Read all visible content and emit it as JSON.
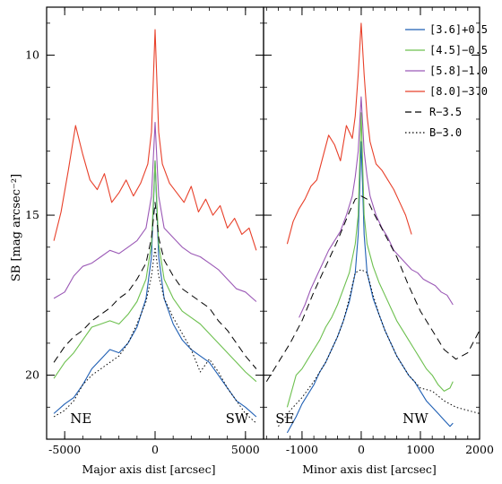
{
  "chart_data": [
    {
      "type": "line",
      "id": "major",
      "xlabel": "Major axis dist [arcsec]",
      "ylabel": "SB [mag arcsec⁻²]",
      "xlim": [
        -6000,
        6000
      ],
      "ylim": [
        22,
        8.5
      ],
      "y_inverted": true,
      "xticks": [
        -5000,
        0,
        5000
      ],
      "yticks": [
        10,
        15,
        20
      ],
      "annotations": [
        {
          "text": "NE",
          "x": -4700,
          "y": 21.5
        },
        {
          "text": "SW",
          "x": 3900,
          "y": 21.5
        }
      ],
      "series": [
        {
          "name": "[3.6]+0.5",
          "color": "#1f5fb4",
          "style": "solid",
          "x": [
            -5600,
            -5000,
            -4500,
            -4000,
            -3500,
            -3000,
            -2500,
            -2000,
            -1500,
            -1000,
            -500,
            -200,
            0,
            200,
            500,
            1000,
            1500,
            2000,
            2500,
            3000,
            3500,
            4000,
            4500,
            5000,
            5600
          ],
          "y": [
            21.2,
            20.9,
            20.7,
            20.3,
            19.8,
            19.5,
            19.2,
            19.3,
            19.0,
            18.5,
            17.6,
            16.3,
            13.3,
            16.3,
            17.6,
            18.4,
            18.9,
            19.2,
            19.4,
            19.6,
            20.0,
            20.4,
            20.8,
            21.0,
            21.3
          ]
        },
        {
          "name": "[4.5]−0.5",
          "color": "#6dc04f",
          "style": "solid",
          "x": [
            -5600,
            -5000,
            -4500,
            -4000,
            -3500,
            -3000,
            -2500,
            -2000,
            -1500,
            -1000,
            -500,
            -200,
            0,
            200,
            500,
            1000,
            1500,
            2000,
            2500,
            3000,
            3500,
            4000,
            4500,
            5000,
            5600
          ],
          "y": [
            20.1,
            19.6,
            19.3,
            18.9,
            18.5,
            18.4,
            18.3,
            18.4,
            18.1,
            17.7,
            17.0,
            15.9,
            13.3,
            15.9,
            17.0,
            17.6,
            18.0,
            18.2,
            18.4,
            18.7,
            19.0,
            19.3,
            19.6,
            19.9,
            20.2
          ]
        },
        {
          "name": "[5.8]−1.0",
          "color": "#9b59b6",
          "style": "solid",
          "x": [
            -5600,
            -5000,
            -4500,
            -4000,
            -3500,
            -3000,
            -2500,
            -2000,
            -1500,
            -1000,
            -500,
            -200,
            0,
            200,
            500,
            1000,
            1500,
            2000,
            2500,
            3000,
            3500,
            4000,
            4500,
            5000,
            5600
          ],
          "y": [
            17.6,
            17.4,
            16.9,
            16.6,
            16.5,
            16.3,
            16.1,
            16.2,
            16.0,
            15.8,
            15.4,
            14.4,
            12.1,
            14.4,
            15.4,
            15.7,
            16.0,
            16.2,
            16.3,
            16.5,
            16.7,
            17.0,
            17.3,
            17.4,
            17.7
          ]
        },
        {
          "name": "[8.0]−3.0",
          "color": "#e8402a",
          "style": "solid",
          "x": [
            -5600,
            -5200,
            -4800,
            -4400,
            -4000,
            -3600,
            -3200,
            -2800,
            -2400,
            -2000,
            -1600,
            -1200,
            -800,
            -400,
            -200,
            0,
            200,
            400,
            800,
            1200,
            1600,
            2000,
            2400,
            2800,
            3200,
            3600,
            4000,
            4400,
            4800,
            5200,
            5600
          ],
          "y": [
            15.8,
            14.9,
            13.6,
            12.2,
            13.1,
            13.9,
            14.2,
            13.7,
            14.6,
            14.3,
            13.9,
            14.4,
            14.0,
            13.4,
            12.4,
            9.2,
            12.4,
            13.4,
            14.0,
            14.3,
            14.6,
            14.1,
            14.9,
            14.5,
            15.0,
            14.7,
            15.4,
            15.1,
            15.6,
            15.4,
            16.1
          ]
        },
        {
          "name": "R−3.5",
          "color": "#000000",
          "style": "dashed",
          "x": [
            -5600,
            -5000,
            -4500,
            -4000,
            -3500,
            -3000,
            -2500,
            -2000,
            -1500,
            -1000,
            -500,
            -200,
            0,
            200,
            500,
            1000,
            1500,
            2000,
            2500,
            3000,
            3500,
            4000,
            4500,
            5000,
            5600
          ],
          "y": [
            19.6,
            19.1,
            18.8,
            18.6,
            18.3,
            18.1,
            17.9,
            17.6,
            17.4,
            17.0,
            16.5,
            15.7,
            14.6,
            15.7,
            16.4,
            16.9,
            17.3,
            17.5,
            17.7,
            17.9,
            18.3,
            18.6,
            19.0,
            19.4,
            19.8
          ]
        },
        {
          "name": "B−3.0",
          "color": "#000000",
          "style": "dotted",
          "x": [
            -5600,
            -5000,
            -4500,
            -4000,
            -3500,
            -3000,
            -2500,
            -2000,
            -1500,
            -1000,
            -500,
            -200,
            0,
            200,
            500,
            1000,
            1500,
            2000,
            2500,
            3000,
            3500,
            4000,
            4500,
            5000,
            5600
          ],
          "y": [
            21.3,
            21.1,
            20.8,
            20.3,
            20.0,
            19.8,
            19.6,
            19.4,
            19.0,
            18.4,
            17.7,
            16.9,
            16.0,
            16.9,
            17.6,
            18.2,
            18.7,
            19.2,
            19.9,
            19.5,
            19.9,
            20.4,
            20.8,
            21.2,
            21.5
          ]
        }
      ]
    },
    {
      "type": "line",
      "id": "minor",
      "xlabel": "Minor axis dist [arcsec]",
      "xlim": [
        -1650,
        2000
      ],
      "ylim": [
        22,
        8.5
      ],
      "y_inverted": true,
      "xticks": [
        -1000,
        0,
        1000,
        2000
      ],
      "annotations": [
        {
          "text": "SE",
          "x": -1450,
          "y": 21.5
        },
        {
          "text": "NW",
          "x": 700,
          "y": 21.5
        }
      ],
      "series": [
        {
          "name": "[3.6]+0.5",
          "color": "#1f5fb4",
          "style": "solid",
          "x": [
            -1250,
            -1100,
            -1000,
            -900,
            -800,
            -700,
            -600,
            -500,
            -400,
            -300,
            -200,
            -100,
            -50,
            0,
            50,
            100,
            200,
            300,
            400,
            500,
            600,
            700,
            800,
            900,
            1000,
            1100,
            1200,
            1300,
            1400,
            1500,
            1550
          ],
          "y": [
            21.8,
            21.3,
            20.9,
            20.6,
            20.3,
            19.9,
            19.6,
            19.2,
            18.8,
            18.3,
            17.7,
            16.8,
            15.6,
            12.7,
            15.6,
            16.8,
            17.6,
            18.1,
            18.6,
            19.0,
            19.4,
            19.7,
            20.0,
            20.2,
            20.5,
            20.8,
            21.0,
            21.2,
            21.4,
            21.6,
            21.5
          ]
        },
        {
          "name": "[4.5]−0.5",
          "color": "#6dc04f",
          "style": "solid",
          "x": [
            -1250,
            -1100,
            -1000,
            -900,
            -800,
            -700,
            -600,
            -500,
            -400,
            -300,
            -200,
            -100,
            -50,
            0,
            50,
            100,
            200,
            300,
            400,
            500,
            600,
            700,
            800,
            900,
            1000,
            1100,
            1200,
            1300,
            1400,
            1500,
            1550
          ],
          "y": [
            21.0,
            20.0,
            19.8,
            19.5,
            19.2,
            18.9,
            18.5,
            18.2,
            17.8,
            17.3,
            16.8,
            15.9,
            15.0,
            11.8,
            15.0,
            15.9,
            16.6,
            17.1,
            17.5,
            17.9,
            18.3,
            18.6,
            18.9,
            19.2,
            19.5,
            19.8,
            20.0,
            20.3,
            20.5,
            20.4,
            20.2
          ]
        },
        {
          "name": "[5.8]−1.0",
          "color": "#9b59b6",
          "style": "solid",
          "x": [
            -1050,
            -950,
            -850,
            -750,
            -650,
            -550,
            -450,
            -350,
            -250,
            -150,
            -100,
            -50,
            0,
            50,
            100,
            150,
            250,
            350,
            450,
            550,
            650,
            750,
            850,
            950,
            1050,
            1150,
            1250,
            1350,
            1450,
            1550
          ],
          "y": [
            18.2,
            17.8,
            17.3,
            16.9,
            16.5,
            16.1,
            15.8,
            15.5,
            15.0,
            14.4,
            13.8,
            13.0,
            11.3,
            13.0,
            13.8,
            14.4,
            15.0,
            15.4,
            15.7,
            16.1,
            16.3,
            16.5,
            16.7,
            16.8,
            17.0,
            17.1,
            17.2,
            17.4,
            17.5,
            17.8
          ]
        },
        {
          "name": "[8.0]−3.0",
          "color": "#e8402a",
          "style": "solid",
          "x": [
            -1250,
            -1150,
            -1050,
            -950,
            -850,
            -750,
            -650,
            -550,
            -450,
            -350,
            -250,
            -150,
            -100,
            -50,
            0,
            50,
            100,
            150,
            250,
            350,
            450,
            550,
            650,
            750,
            850
          ],
          "y": [
            15.9,
            15.2,
            14.8,
            14.5,
            14.1,
            13.9,
            13.2,
            12.5,
            12.8,
            13.3,
            12.2,
            12.6,
            11.9,
            10.6,
            9.0,
            10.6,
            11.9,
            12.7,
            13.4,
            13.6,
            13.9,
            14.2,
            14.6,
            15.0,
            15.6
          ]
        },
        {
          "name": "R−3.5",
          "color": "#000000",
          "style": "dashed",
          "x": [
            -1600,
            -1400,
            -1200,
            -1000,
            -800,
            -600,
            -400,
            -200,
            -100,
            0,
            100,
            200,
            400,
            600,
            800,
            1000,
            1200,
            1400,
            1600,
            1800,
            2000
          ],
          "y": [
            20.2,
            19.6,
            19.0,
            18.3,
            17.4,
            16.6,
            15.8,
            14.9,
            14.5,
            14.4,
            14.5,
            14.9,
            15.6,
            16.3,
            17.2,
            18.0,
            18.6,
            19.2,
            19.5,
            19.3,
            18.6
          ]
        },
        {
          "name": "B−3.0",
          "color": "#000000",
          "style": "dotted",
          "x": [
            -1400,
            -1200,
            -1000,
            -800,
            -600,
            -400,
            -300,
            -200,
            -100,
            0,
            100,
            200,
            300,
            400,
            600,
            800,
            1000,
            1200,
            1400,
            1600,
            1800,
            2000
          ],
          "y": [
            21.6,
            21.1,
            20.7,
            20.2,
            19.6,
            18.8,
            18.3,
            17.6,
            16.8,
            16.7,
            16.8,
            17.5,
            18.1,
            18.6,
            19.4,
            20.0,
            20.4,
            20.5,
            20.8,
            21.0,
            21.1,
            21.2
          ]
        }
      ]
    }
  ]
}
